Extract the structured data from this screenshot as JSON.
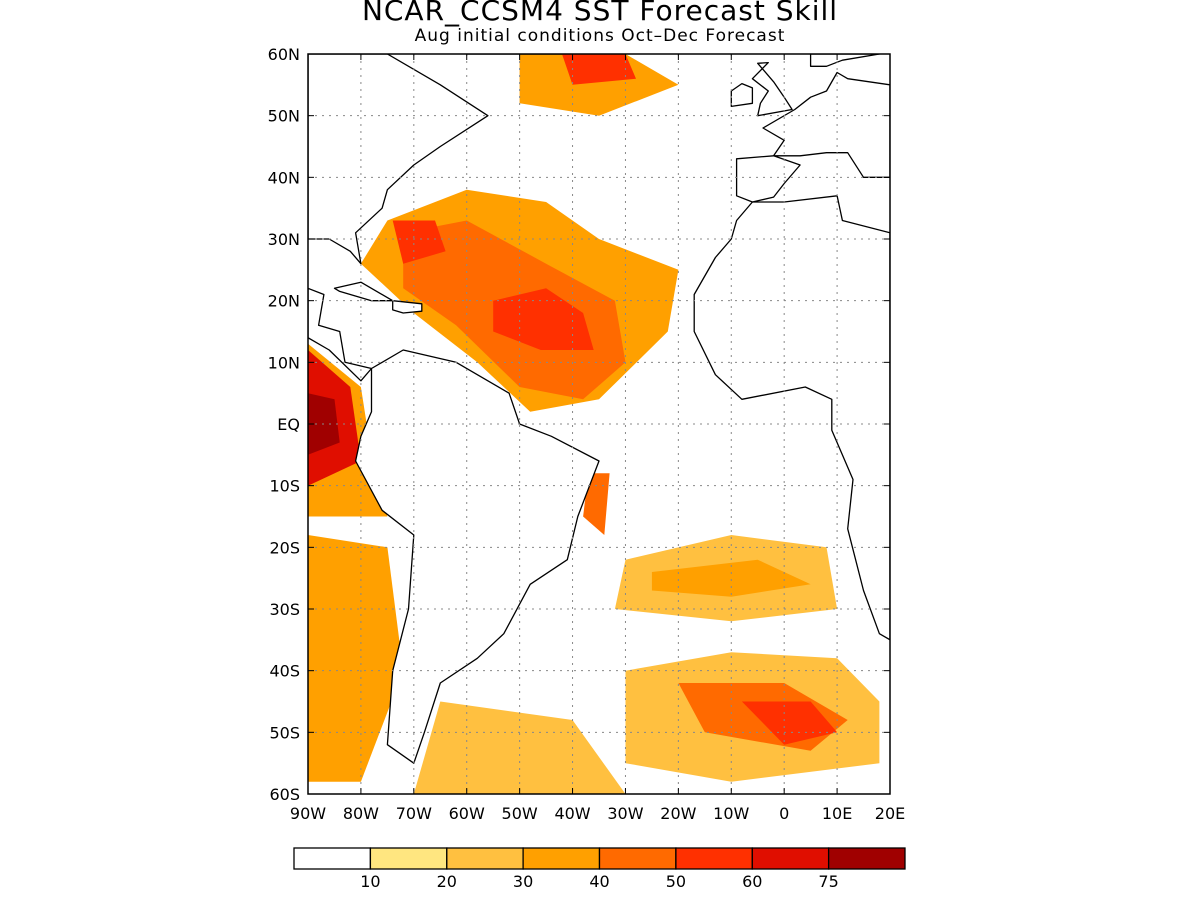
{
  "title": "NCAR_CCSM4 SST Forecast Skill",
  "subtitle": "Aug initial conditions  Oct–Dec Forecast",
  "map": {
    "region": "Atlantic Ocean",
    "lat_range": [
      -60,
      60
    ],
    "lon_range": [
      -90,
      20
    ],
    "lat_ticks": [
      {
        "value": 60,
        "label": "60N"
      },
      {
        "value": 50,
        "label": "50N"
      },
      {
        "value": 40,
        "label": "40N"
      },
      {
        "value": 30,
        "label": "30N"
      },
      {
        "value": 20,
        "label": "20N"
      },
      {
        "value": 10,
        "label": "10N"
      },
      {
        "value": 0,
        "label": "EQ"
      },
      {
        "value": -10,
        "label": "10S"
      },
      {
        "value": -20,
        "label": "20S"
      },
      {
        "value": -30,
        "label": "30S"
      },
      {
        "value": -40,
        "label": "40S"
      },
      {
        "value": -50,
        "label": "50S"
      },
      {
        "value": -60,
        "label": "60S"
      }
    ],
    "lon_ticks": [
      {
        "value": -90,
        "label": "90W"
      },
      {
        "value": -80,
        "label": "80W"
      },
      {
        "value": -70,
        "label": "70W"
      },
      {
        "value": -60,
        "label": "60W"
      },
      {
        "value": -50,
        "label": "50W"
      },
      {
        "value": -40,
        "label": "40W"
      },
      {
        "value": -30,
        "label": "30W"
      },
      {
        "value": -20,
        "label": "20W"
      },
      {
        "value": -10,
        "label": "10W"
      },
      {
        "value": 0,
        "label": "0"
      },
      {
        "value": 10,
        "label": "10E"
      },
      {
        "value": 20,
        "label": "20E"
      }
    ],
    "gridlines": "dotted"
  },
  "colorbar": {
    "colors": [
      "#ffffff",
      "#ffe680",
      "#ffc040",
      "#ffa000",
      "#ff6a00",
      "#ff3000",
      "#e00e00",
      "#a00000"
    ],
    "labels": [
      "10",
      "20",
      "30",
      "40",
      "50",
      "60",
      "75"
    ]
  },
  "skill_regions": [
    {
      "level": 3,
      "points": [
        [
          -75,
          33
        ],
        [
          -60,
          38
        ],
        [
          -45,
          36
        ],
        [
          -35,
          30
        ],
        [
          -20,
          25
        ],
        [
          -22,
          15
        ],
        [
          -35,
          4
        ],
        [
          -48,
          2
        ],
        [
          -58,
          10
        ],
        [
          -70,
          18
        ],
        [
          -80,
          26
        ]
      ]
    },
    {
      "level": 4,
      "points": [
        [
          -72,
          31
        ],
        [
          -60,
          33
        ],
        [
          -45,
          26
        ],
        [
          -32,
          20
        ],
        [
          -30,
          10
        ],
        [
          -38,
          4
        ],
        [
          -50,
          6
        ],
        [
          -62,
          16
        ],
        [
          -72,
          22
        ]
      ]
    },
    {
      "level": 5,
      "points": [
        [
          -55,
          20
        ],
        [
          -45,
          22
        ],
        [
          -38,
          18
        ],
        [
          -36,
          12
        ],
        [
          -46,
          12
        ],
        [
          -55,
          15
        ]
      ]
    },
    {
      "level": 5,
      "points": [
        [
          -74,
          33
        ],
        [
          -66,
          33
        ],
        [
          -64,
          28
        ],
        [
          -72,
          26
        ]
      ]
    },
    {
      "level": 3,
      "points": [
        [
          -90,
          13
        ],
        [
          -80,
          6
        ],
        [
          -78,
          -5
        ],
        [
          -75,
          -15
        ],
        [
          -90,
          -15
        ]
      ]
    },
    {
      "level": 6,
      "points": [
        [
          -90,
          12
        ],
        [
          -82,
          6
        ],
        [
          -80,
          -6
        ],
        [
          -90,
          -10
        ]
      ]
    },
    {
      "level": 7,
      "points": [
        [
          -90,
          5
        ],
        [
          -85,
          4
        ],
        [
          -84,
          -3
        ],
        [
          -90,
          -5
        ]
      ]
    },
    {
      "level": 2,
      "points": [
        [
          -30,
          -22
        ],
        [
          -10,
          -18
        ],
        [
          8,
          -20
        ],
        [
          10,
          -30
        ],
        [
          -10,
          -32
        ],
        [
          -32,
          -30
        ]
      ]
    },
    {
      "level": 3,
      "points": [
        [
          -25,
          -24
        ],
        [
          -5,
          -22
        ],
        [
          5,
          -26
        ],
        [
          -10,
          -28
        ],
        [
          -25,
          -27
        ]
      ]
    },
    {
      "level": 2,
      "points": [
        [
          -30,
          -40
        ],
        [
          -10,
          -37
        ],
        [
          10,
          -38
        ],
        [
          18,
          -45
        ],
        [
          18,
          -55
        ],
        [
          -10,
          -58
        ],
        [
          -30,
          -55
        ]
      ]
    },
    {
      "level": 4,
      "points": [
        [
          -20,
          -42
        ],
        [
          0,
          -42
        ],
        [
          12,
          -48
        ],
        [
          5,
          -53
        ],
        [
          -15,
          -50
        ]
      ]
    },
    {
      "level": 5,
      "points": [
        [
          -8,
          -45
        ],
        [
          5,
          -45
        ],
        [
          10,
          -50
        ],
        [
          0,
          -52
        ]
      ]
    },
    {
      "level": 3,
      "points": [
        [
          -50,
          60
        ],
        [
          -30,
          60
        ],
        [
          -20,
          55
        ],
        [
          -35,
          50
        ],
        [
          -50,
          52
        ]
      ]
    },
    {
      "level": 5,
      "points": [
        [
          -42,
          60
        ],
        [
          -30,
          60
        ],
        [
          -28,
          56
        ],
        [
          -40,
          55
        ]
      ]
    },
    {
      "level": 3,
      "points": [
        [
          -90,
          -18
        ],
        [
          -75,
          -20
        ],
        [
          -72,
          -40
        ],
        [
          -80,
          -58
        ],
        [
          -90,
          -58
        ]
      ]
    },
    {
      "level": 2,
      "points": [
        [
          -65,
          -45
        ],
        [
          -40,
          -48
        ],
        [
          -30,
          -60
        ],
        [
          -70,
          -60
        ]
      ]
    },
    {
      "level": 4,
      "points": [
        [
          -37,
          -8
        ],
        [
          -33,
          -8
        ],
        [
          -34,
          -18
        ],
        [
          -38,
          -15
        ]
      ]
    }
  ],
  "land_regions": [
    {
      "name": "North America",
      "points": [
        [
          -90,
          60
        ],
        [
          -75,
          60
        ],
        [
          -65,
          55
        ],
        [
          -56,
          50
        ],
        [
          -65,
          45
        ],
        [
          -70,
          42
        ],
        [
          -75,
          38
        ],
        [
          -76,
          35
        ],
        [
          -81,
          31
        ],
        [
          -80,
          26
        ],
        [
          -82,
          28
        ],
        [
          -86,
          30
        ],
        [
          -90,
          30
        ]
      ]
    },
    {
      "name": "Greenland",
      "points": [
        [
          -60,
          60
        ],
        [
          -44,
          60
        ],
        [
          -42,
          60
        ],
        [
          -48,
          60
        ]
      ]
    },
    {
      "name": "Central America",
      "points": [
        [
          -90,
          22
        ],
        [
          -87,
          21
        ],
        [
          -88,
          16
        ],
        [
          -84,
          15
        ],
        [
          -83,
          10
        ],
        [
          -78,
          9
        ],
        [
          -80,
          7
        ],
        [
          -86,
          12
        ],
        [
          -90,
          14
        ]
      ]
    },
    {
      "name": "South America",
      "points": [
        [
          -78,
          9
        ],
        [
          -72,
          12
        ],
        [
          -62,
          10
        ],
        [
          -52,
          5
        ],
        [
          -50,
          0
        ],
        [
          -44,
          -2
        ],
        [
          -35,
          -6
        ],
        [
          -39,
          -15
        ],
        [
          -41,
          -22
        ],
        [
          -48,
          -26
        ],
        [
          -53,
          -34
        ],
        [
          -58,
          -38
        ],
        [
          -65,
          -42
        ],
        [
          -68,
          -50
        ],
        [
          -70,
          -55
        ],
        [
          -75,
          -52
        ],
        [
          -74,
          -40
        ],
        [
          -71,
          -30
        ],
        [
          -70,
          -18
        ],
        [
          -76,
          -14
        ],
        [
          -81,
          -6
        ],
        [
          -80,
          -2
        ],
        [
          -78,
          2
        ]
      ]
    },
    {
      "name": "Cuba",
      "points": [
        [
          -85,
          22
        ],
        [
          -80,
          23
        ],
        [
          -74,
          20
        ],
        [
          -78,
          20
        ],
        [
          -84,
          21.5
        ]
      ]
    },
    {
      "name": "Hispaniola",
      "points": [
        [
          -74,
          20
        ],
        [
          -68.5,
          19.5
        ],
        [
          -68.5,
          18.3
        ],
        [
          -72,
          18
        ],
        [
          -74,
          18.5
        ]
      ]
    },
    {
      "name": "Africa",
      "points": [
        [
          -6,
          36
        ],
        [
          0,
          36
        ],
        [
          10,
          37
        ],
        [
          11,
          33
        ],
        [
          20,
          31
        ],
        [
          20,
          -35
        ],
        [
          18,
          -34
        ],
        [
          15,
          -27
        ],
        [
          12,
          -17
        ],
        [
          13,
          -9
        ],
        [
          9,
          -1
        ],
        [
          9,
          4
        ],
        [
          4,
          6
        ],
        [
          -8,
          4
        ],
        [
          -13,
          8
        ],
        [
          -17,
          15
        ],
        [
          -17,
          21
        ],
        [
          -13,
          27
        ],
        [
          -10,
          30
        ],
        [
          -9,
          33
        ]
      ]
    },
    {
      "name": "Iberia",
      "points": [
        [
          -9,
          43
        ],
        [
          -2,
          43.5
        ],
        [
          3,
          42
        ],
        [
          0,
          39
        ],
        [
          -2,
          36.8
        ],
        [
          -6,
          36
        ],
        [
          -9,
          37
        ],
        [
          -9,
          39
        ]
      ]
    },
    {
      "name": "Europe",
      "points": [
        [
          -2,
          43.5
        ],
        [
          0,
          46
        ],
        [
          -4,
          48
        ],
        [
          2,
          51
        ],
        [
          5,
          53
        ],
        [
          8,
          54
        ],
        [
          10,
          57
        ],
        [
          12,
          56
        ],
        [
          20,
          55
        ],
        [
          20,
          40
        ],
        [
          15,
          40
        ],
        [
          12,
          44
        ],
        [
          8,
          44
        ],
        [
          3,
          43.5
        ]
      ]
    },
    {
      "name": "Great Britain",
      "points": [
        [
          -5,
          50
        ],
        [
          1.5,
          51
        ],
        [
          0,
          53
        ],
        [
          -2,
          55.5
        ],
        [
          -5,
          58.5
        ],
        [
          -3,
          58.6
        ],
        [
          -6,
          56
        ],
        [
          -3,
          54
        ],
        [
          -4.5,
          52
        ]
      ]
    },
    {
      "name": "Ireland",
      "points": [
        [
          -10,
          51.5
        ],
        [
          -6,
          52
        ],
        [
          -6,
          54.5
        ],
        [
          -8,
          55.2
        ],
        [
          -10,
          54
        ]
      ]
    },
    {
      "name": "Scandinavia",
      "points": [
        [
          5,
          58
        ],
        [
          8,
          58
        ],
        [
          11,
          59
        ],
        [
          18,
          60
        ],
        [
          10,
          60
        ],
        [
          5,
          60
        ]
      ]
    }
  ]
}
